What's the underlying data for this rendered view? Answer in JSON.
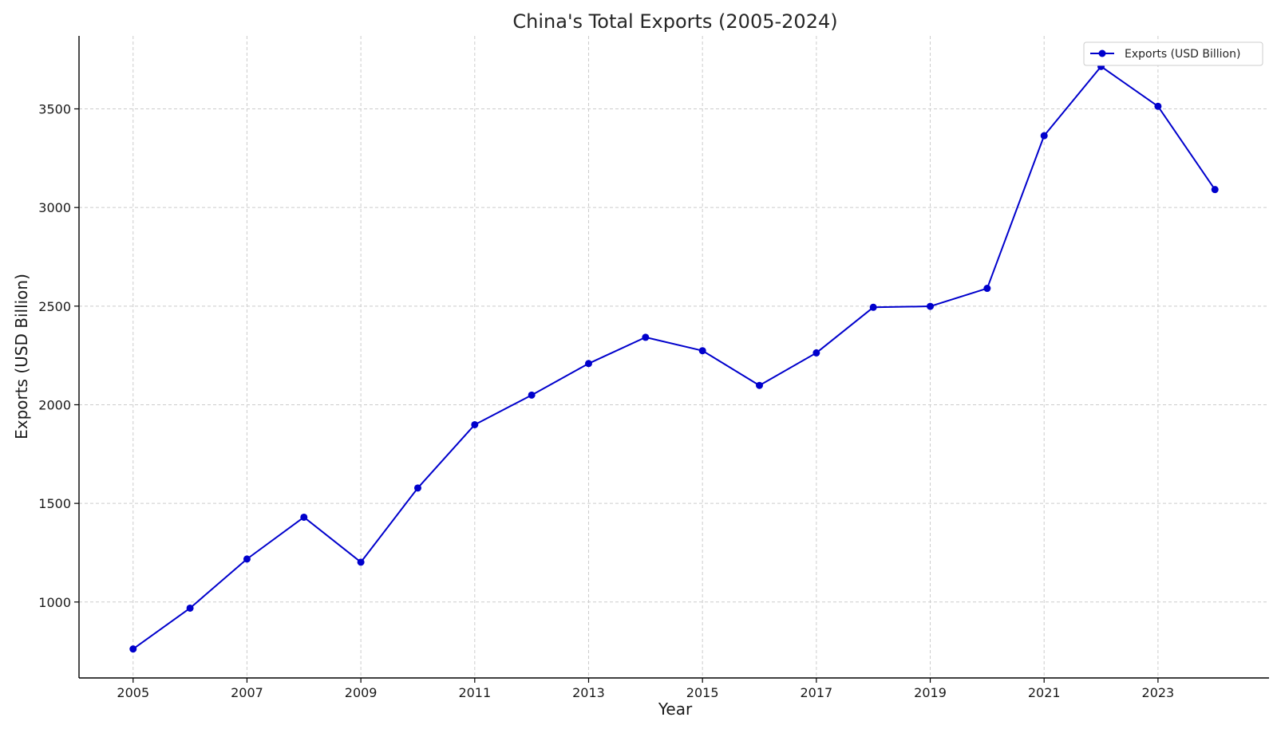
{
  "chart_data": {
    "type": "line",
    "title": "China's Total Exports (2005-2024)",
    "xlabel": "Year",
    "ylabel": "Exports (USD Billion)",
    "x": [
      2005,
      2006,
      2007,
      2008,
      2009,
      2010,
      2011,
      2012,
      2013,
      2014,
      2015,
      2016,
      2017,
      2018,
      2019,
      2020,
      2021,
      2022,
      2023,
      2024
    ],
    "x_ticks": [
      2005,
      2007,
      2009,
      2011,
      2013,
      2015,
      2017,
      2019,
      2021,
      2023
    ],
    "x_tick_labels": [
      "2005",
      "2007",
      "2009",
      "2011",
      "2013",
      "2015",
      "2017",
      "2019",
      "2021",
      "2023"
    ],
    "y_ticks": [
      1000,
      1500,
      2000,
      2500,
      3000,
      3500
    ],
    "y_tick_labels": [
      "1000",
      "1500",
      "2000",
      "2500",
      "3000",
      "3500"
    ],
    "xlim": [
      2004.05,
      2024.95
    ],
    "ylim": [
      615,
      3870
    ],
    "grid": true,
    "legend_position": "top-right",
    "series": [
      {
        "name": "Exports (USD Billion)",
        "color": "#0000cc",
        "marker": "circle",
        "values": [
          762,
          969,
          1218,
          1430,
          1202,
          1578,
          1899,
          2049,
          2209,
          2342,
          2274,
          2098,
          2263,
          2494,
          2499,
          2590,
          3364,
          3715,
          3513,
          3091
        ]
      }
    ]
  }
}
